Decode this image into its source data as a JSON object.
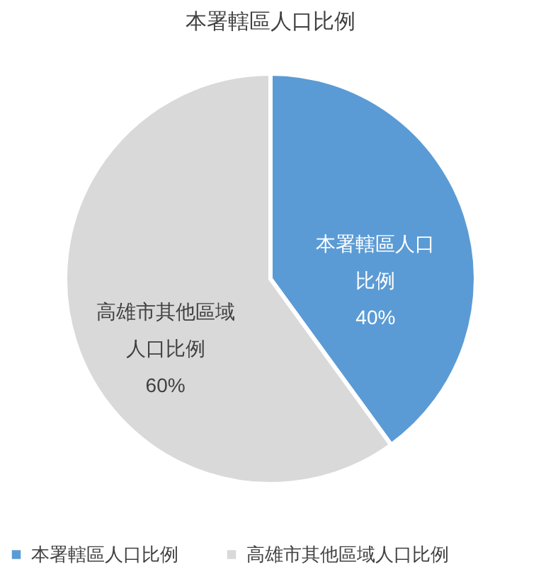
{
  "chart_data": {
    "type": "pie",
    "title": "本署轄區人口比例",
    "categories": [
      "本署轄區人口比例",
      "高雄市其他區域人口比例"
    ],
    "values": [
      40,
      60
    ],
    "colors": [
      "#5b9bd5",
      "#d9d9d9"
    ],
    "value_labels": [
      "本署轄區人口比例40%",
      "高雄市其他區域人口比例60%"
    ],
    "legend": "bottom"
  }
}
